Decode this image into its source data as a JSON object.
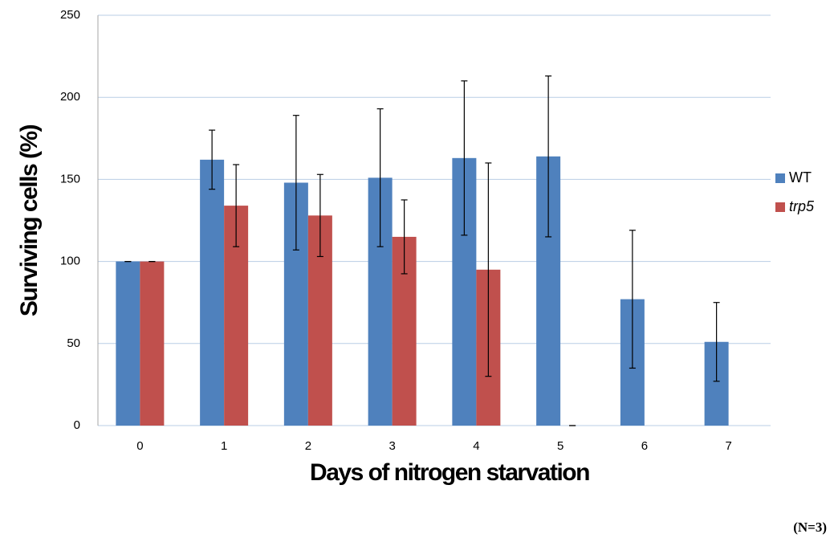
{
  "chart_data": {
    "type": "bar",
    "x_label": "Days of nitrogen starvation",
    "y_label": "Surviving cells (%)",
    "note": "(N=3)",
    "categories": [
      "0",
      "1",
      "2",
      "3",
      "4",
      "5",
      "6",
      "7"
    ],
    "series": [
      {
        "name": "WT",
        "color": "#4f81bd",
        "values": [
          100,
          162,
          148,
          151,
          163,
          164,
          77,
          51
        ],
        "errors": [
          0,
          18,
          41,
          42,
          47,
          49,
          42,
          24
        ]
      },
      {
        "name": "trp5",
        "color": "#c0504d",
        "values": [
          100,
          134,
          128,
          115,
          95,
          0,
          null,
          null
        ],
        "errors": [
          0,
          25,
          25,
          22.5,
          65,
          0,
          null,
          null
        ]
      }
    ],
    "ylim": [
      0,
      250
    ],
    "yticks": [
      0,
      50,
      100,
      150,
      200,
      250
    ],
    "grid": true,
    "legend": "right"
  }
}
